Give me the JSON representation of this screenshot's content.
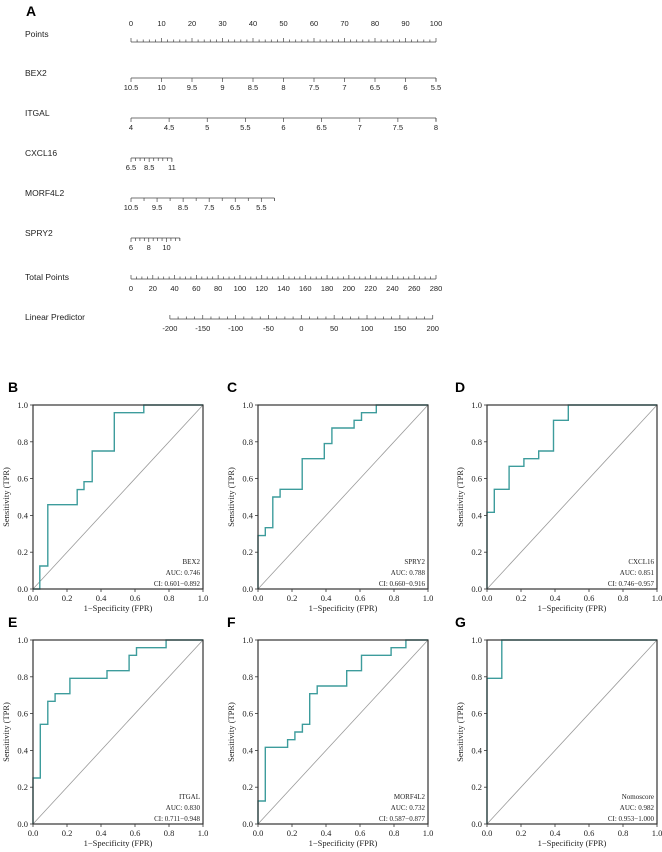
{
  "chart_data": [
    {
      "type": "nomogram",
      "panel_label": "A",
      "points_scale": {
        "label": "Points",
        "range": [
          0,
          100
        ],
        "tick_labels": [
          "0",
          "10",
          "20",
          "30",
          "40",
          "50",
          "60",
          "70",
          "80",
          "90",
          "100"
        ],
        "minor_step": 2
      },
      "variables": [
        {
          "label": "BEX2",
          "value_range": [
            10.5,
            5.5
          ],
          "points_range": [
            0,
            100
          ],
          "tick_labels": [
            "10.5",
            "10",
            "9.5",
            "9",
            "8.5",
            "8",
            "7.5",
            "7",
            "6.5",
            "6",
            "5.5"
          ],
          "tick_values": [
            10.5,
            10,
            9.5,
            9,
            8.5,
            8,
            7.5,
            7,
            6.5,
            6,
            5.5
          ],
          "minor_ticks": []
        },
        {
          "label": "ITGAL",
          "value_range": [
            4,
            8
          ],
          "points_range": [
            0,
            100
          ],
          "tick_labels": [
            "4",
            "4.5",
            "5",
            "5.5",
            "6",
            "6.5",
            "7",
            "7.5",
            "8"
          ],
          "tick_values": [
            4,
            4.5,
            5,
            5.5,
            6,
            6.5,
            7,
            7.5,
            8
          ],
          "minor_ticks": []
        },
        {
          "label": "CXCL16",
          "value_range": [
            6.5,
            11
          ],
          "points_range": [
            0,
            13.4
          ],
          "tick_labels": [
            "6.5",
            "8.5",
            "11"
          ],
          "tick_values": [
            6.5,
            8.5,
            11
          ],
          "minor_ticks": [
            7,
            7.5,
            8,
            9,
            9.5,
            10,
            10.5
          ]
        },
        {
          "label": "MORF4L2",
          "value_range": [
            10.5,
            5.0
          ],
          "points_range": [
            0,
            47
          ],
          "tick_labels": [
            "10.5",
            "9.5",
            "8.5",
            "7.5",
            "6.5",
            "5.5"
          ],
          "tick_values": [
            10.5,
            9.5,
            8.5,
            7.5,
            6.5,
            5.5
          ],
          "minor_ticks": [
            10,
            9,
            8,
            7,
            6,
            5
          ]
        },
        {
          "label": "SPRY2",
          "value_range": [
            6,
            11.5
          ],
          "points_range": [
            0,
            16
          ],
          "tick_labels": [
            "6",
            "8",
            "10"
          ],
          "tick_values": [
            6,
            8,
            10
          ],
          "minor_ticks": [
            6.5,
            7,
            7.5,
            8.5,
            9,
            9.5,
            10.5,
            11,
            11.5
          ]
        }
      ],
      "total_points": {
        "label": "Total Points",
        "range": [
          0,
          280
        ],
        "tick_labels": [
          "0",
          "20",
          "40",
          "60",
          "80",
          "100",
          "120",
          "140",
          "160",
          "180",
          "200",
          "220",
          "240",
          "260",
          "280"
        ],
        "minor_step": 5
      },
      "linear_predictor": {
        "label": "Linear Predictor",
        "range": [
          -200,
          200
        ],
        "total_points_range": [
          35.7,
          277
        ],
        "tick_labels": [
          "-200",
          "-150",
          "-100",
          "-50",
          "0",
          "50",
          "100",
          "150",
          "200"
        ],
        "minor_step": 12.5
      }
    },
    {
      "type": "line",
      "panel_label": "B",
      "name": "BEX2",
      "auc": "AUC: 0.746",
      "ci": "CI: 0.601−0.892",
      "x": [
        0,
        0.04,
        0.04,
        0.087,
        0.087,
        0.26,
        0.26,
        0.3,
        0.3,
        0.348,
        0.348,
        0.478,
        0.478,
        0.652,
        0.652,
        1
      ],
      "y": [
        0,
        0,
        0.125,
        0.125,
        0.458,
        0.458,
        0.54,
        0.54,
        0.583,
        0.583,
        0.75,
        0.75,
        0.958,
        0.958,
        1,
        1
      ]
    },
    {
      "type": "line",
      "panel_label": "C",
      "name": "SPRY2",
      "auc": "AUC: 0.788",
      "ci": "CI: 0.660−0.916",
      "x": [
        0,
        0,
        0.043,
        0.043,
        0.087,
        0.087,
        0.13,
        0.13,
        0.26,
        0.26,
        0.39,
        0.39,
        0.435,
        0.435,
        0.565,
        0.565,
        0.609,
        0.609,
        0.696,
        0.696,
        1
      ],
      "y": [
        0,
        0.29,
        0.29,
        0.333,
        0.333,
        0.5,
        0.5,
        0.542,
        0.542,
        0.708,
        0.708,
        0.79,
        0.79,
        0.875,
        0.875,
        0.917,
        0.917,
        0.958,
        0.958,
        1,
        1
      ]
    },
    {
      "type": "line",
      "panel_label": "D",
      "name": "CXCL16",
      "auc": "AUC: 0.851",
      "ci": "CI: 0.746−0.957",
      "x": [
        0,
        0,
        0.043,
        0.043,
        0.13,
        0.13,
        0.217,
        0.217,
        0.304,
        0.304,
        0.391,
        0.391,
        0.478,
        0.478,
        1
      ],
      "y": [
        0,
        0.417,
        0.417,
        0.542,
        0.542,
        0.667,
        0.667,
        0.708,
        0.708,
        0.75,
        0.75,
        0.917,
        0.917,
        1,
        1
      ]
    },
    {
      "type": "line",
      "panel_label": "E",
      "name": "ITGAL",
      "auc": "AUC: 0.830",
      "ci": "CI: 0.711−0.948",
      "x": [
        0,
        0,
        0.043,
        0.043,
        0.087,
        0.087,
        0.13,
        0.13,
        0.217,
        0.217,
        0.435,
        0.435,
        0.565,
        0.565,
        0.609,
        0.609,
        0.783,
        0.783,
        1
      ],
      "y": [
        0,
        0.25,
        0.25,
        0.542,
        0.542,
        0.667,
        0.667,
        0.708,
        0.708,
        0.792,
        0.792,
        0.833,
        0.833,
        0.917,
        0.917,
        0.958,
        0.958,
        1,
        1
      ]
    },
    {
      "type": "line",
      "panel_label": "F",
      "name": "MORF4L2",
      "auc": "AUC: 0.732",
      "ci": "CI: 0.587−0.877",
      "x": [
        0,
        0,
        0.043,
        0.043,
        0.174,
        0.174,
        0.217,
        0.217,
        0.261,
        0.261,
        0.304,
        0.304,
        0.348,
        0.348,
        0.522,
        0.522,
        0.609,
        0.609,
        0.783,
        0.783,
        0.87,
        0.87,
        1
      ],
      "y": [
        0,
        0.125,
        0.125,
        0.417,
        0.417,
        0.458,
        0.458,
        0.5,
        0.5,
        0.542,
        0.542,
        0.708,
        0.708,
        0.75,
        0.75,
        0.833,
        0.833,
        0.917,
        0.917,
        0.958,
        0.958,
        1,
        1
      ]
    },
    {
      "type": "line",
      "panel_label": "G",
      "name": "Nomoscore",
      "auc": "AUC: 0.982",
      "ci": "CI: 0.953−1.000",
      "x": [
        0,
        0,
        0.087,
        0.087,
        1
      ],
      "y": [
        0,
        0.792,
        0.792,
        1,
        1
      ]
    }
  ],
  "roc_axes": {
    "xlabel": "1−Specificity (FPR)",
    "ylabel": "Sensitivity (TPR)",
    "xlim": [
      0,
      1
    ],
    "ylim": [
      0,
      1
    ],
    "tick_labels": [
      "0.0",
      "0.2",
      "0.4",
      "0.6",
      "0.8",
      "1.0"
    ],
    "reference_line": "diagonal"
  },
  "colors": {
    "roc_line": "#3d9c9c",
    "diagonal": "#9a9a9a",
    "axis": "#333333"
  }
}
